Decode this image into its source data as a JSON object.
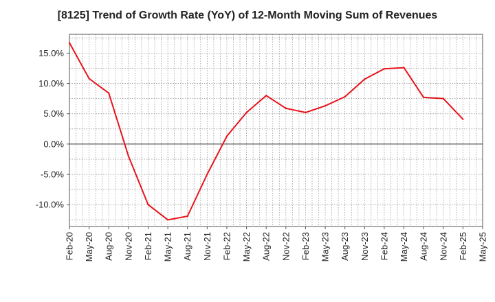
{
  "chart_data": {
    "type": "line",
    "title": "[8125]  Trend of Growth Rate (YoY) of 12-Month Moving Sum of Revenues",
    "xlabel": "",
    "ylabel": "",
    "categories": [
      "Feb-20",
      "May-20",
      "Aug-20",
      "Nov-20",
      "Feb-21",
      "May-21",
      "Aug-21",
      "Nov-21",
      "Feb-22",
      "May-22",
      "Aug-22",
      "Nov-22",
      "Feb-23",
      "May-23",
      "Aug-23",
      "Nov-23",
      "Feb-24",
      "May-24",
      "Aug-24",
      "Nov-24",
      "Feb-25",
      "May-25"
    ],
    "series": [
      {
        "color": "#e8121a",
        "values": [
          16.7,
          10.8,
          8.4,
          -2.0,
          -10.0,
          -12.5,
          -11.9,
          -5.0,
          1.3,
          5.2,
          8.0,
          5.9,
          5.2,
          6.3,
          7.8,
          10.7,
          12.4,
          12.6,
          7.7,
          7.5,
          4.1,
          null
        ]
      }
    ],
    "yticks": [
      -10,
      -5,
      0,
      5,
      10,
      15
    ],
    "ytick_labels": [
      "-10.0%",
      "-5.0%",
      "0.0%",
      "5.0%",
      "10.0%",
      "15.0%"
    ],
    "ylim": [
      -13.6,
      18.1
    ],
    "grid": true,
    "legend": "none"
  }
}
